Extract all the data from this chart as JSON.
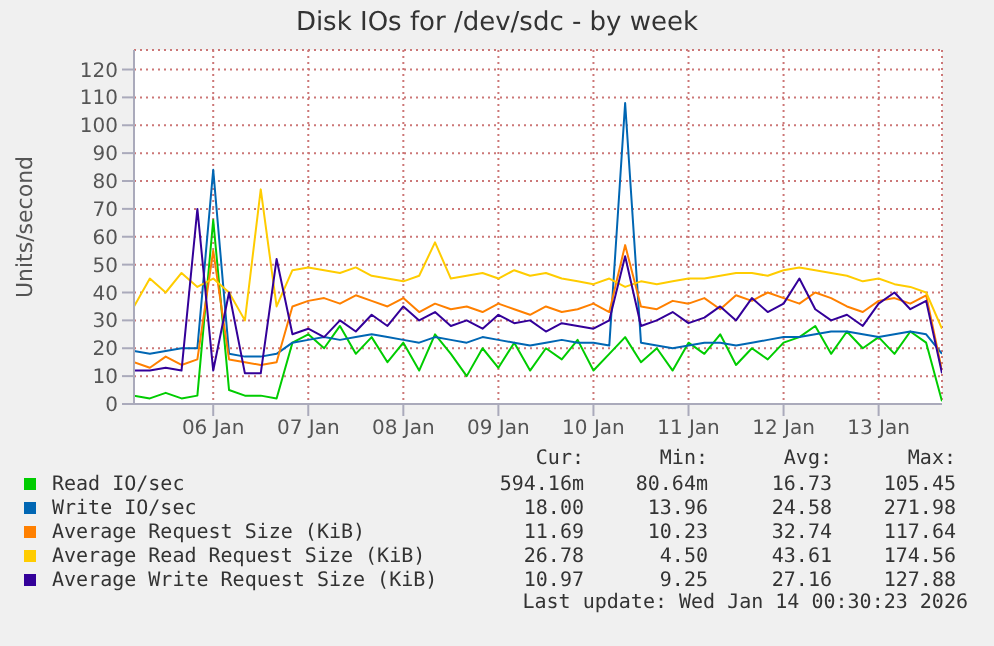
{
  "chart_data": {
    "type": "line",
    "title": "Disk IOs for /dev/sdc - by week",
    "ylabel": "Units/second",
    "x": [
      "2026-01-05T04:00",
      "2026-01-05T08:00",
      "2026-01-05T12:00",
      "2026-01-05T16:00",
      "2026-01-05T20:00",
      "2026-01-06T00:00",
      "2026-01-06T04:00",
      "2026-01-06T08:00",
      "2026-01-06T12:00",
      "2026-01-06T16:00",
      "2026-01-06T20:00",
      "2026-01-07T00:00",
      "2026-01-07T04:00",
      "2026-01-07T08:00",
      "2026-01-07T12:00",
      "2026-01-07T16:00",
      "2026-01-07T20:00",
      "2026-01-08T00:00",
      "2026-01-08T04:00",
      "2026-01-08T08:00",
      "2026-01-08T12:00",
      "2026-01-08T16:00",
      "2026-01-08T20:00",
      "2026-01-09T00:00",
      "2026-01-09T04:00",
      "2026-01-09T08:00",
      "2026-01-09T12:00",
      "2026-01-09T16:00",
      "2026-01-09T20:00",
      "2026-01-10T00:00",
      "2026-01-10T04:00",
      "2026-01-10T08:00",
      "2026-01-10T12:00",
      "2026-01-10T16:00",
      "2026-01-10T20:00",
      "2026-01-11T00:00",
      "2026-01-11T04:00",
      "2026-01-11T08:00",
      "2026-01-11T12:00",
      "2026-01-11T16:00",
      "2026-01-11T20:00",
      "2026-01-12T00:00",
      "2026-01-12T04:00",
      "2026-01-12T08:00",
      "2026-01-12T12:00",
      "2026-01-12T16:00",
      "2026-01-12T20:00",
      "2026-01-13T00:00",
      "2026-01-13T04:00",
      "2026-01-13T08:00",
      "2026-01-13T12:00",
      "2026-01-13T16:00"
    ],
    "series": [
      {
        "name": "Read IO/sec",
        "color": "#00cc00",
        "values": [
          3,
          2,
          4,
          2,
          3,
          66,
          5,
          3,
          3,
          2,
          22,
          25,
          20,
          28,
          18,
          24,
          15,
          22,
          12,
          25,
          18,
          10,
          20,
          13,
          22,
          12,
          20,
          16,
          23,
          12,
          18,
          24,
          15,
          20,
          12,
          22,
          18,
          25,
          14,
          20,
          16,
          22,
          24,
          28,
          18,
          26,
          20,
          24,
          18,
          26,
          22,
          1
        ]
      },
      {
        "name": "Write IO/sec",
        "color": "#0066b3",
        "values": [
          19,
          18,
          19,
          20,
          20,
          84,
          18,
          17,
          17,
          18,
          22,
          23,
          24,
          23,
          24,
          25,
          24,
          23,
          22,
          24,
          23,
          22,
          24,
          23,
          22,
          21,
          22,
          23,
          22,
          22,
          21,
          108,
          22,
          21,
          20,
          21,
          22,
          22,
          21,
          22,
          23,
          24,
          24,
          25,
          26,
          26,
          25,
          24,
          25,
          26,
          25,
          18
        ]
      },
      {
        "name": "Average Request Size (KiB)",
        "color": "#ff8000",
        "values": [
          15,
          13,
          17,
          14,
          16,
          55,
          16,
          15,
          14,
          15,
          35,
          37,
          38,
          36,
          39,
          37,
          35,
          38,
          33,
          36,
          34,
          35,
          33,
          36,
          34,
          32,
          35,
          33,
          34,
          36,
          33,
          57,
          35,
          34,
          37,
          36,
          38,
          34,
          39,
          37,
          40,
          38,
          36,
          40,
          38,
          35,
          33,
          37,
          38,
          36,
          39,
          12
        ]
      },
      {
        "name": "Average Read Request Size (KiB)",
        "color": "#ffcc00",
        "values": [
          35,
          45,
          40,
          47,
          42,
          45,
          40,
          30,
          77,
          35,
          48,
          49,
          48,
          47,
          49,
          46,
          45,
          44,
          46,
          58,
          45,
          46,
          47,
          45,
          48,
          46,
          47,
          45,
          44,
          43,
          45,
          42,
          44,
          43,
          44,
          45,
          45,
          46,
          47,
          47,
          46,
          48,
          49,
          48,
          47,
          46,
          44,
          45,
          43,
          42,
          40,
          27
        ]
      },
      {
        "name": "Average Write Request Size (KiB)",
        "color": "#330099",
        "values": [
          12,
          12,
          13,
          12,
          70,
          12,
          40,
          11,
          11,
          52,
          25,
          27,
          24,
          30,
          26,
          32,
          28,
          35,
          30,
          33,
          28,
          30,
          27,
          32,
          29,
          30,
          26,
          29,
          28,
          27,
          30,
          53,
          28,
          30,
          33,
          29,
          31,
          35,
          30,
          38,
          33,
          36,
          45,
          34,
          30,
          32,
          28,
          36,
          40,
          34,
          37,
          11
        ]
      }
    ],
    "xlim": [
      "2026-01-05T04:00",
      "2026-01-13T16:00"
    ],
    "xticks": [
      {
        "value": "2026-01-06",
        "label": "06 Jan"
      },
      {
        "value": "2026-01-07",
        "label": "07 Jan"
      },
      {
        "value": "2026-01-08",
        "label": "08 Jan"
      },
      {
        "value": "2026-01-09",
        "label": "09 Jan"
      },
      {
        "value": "2026-01-10",
        "label": "10 Jan"
      },
      {
        "value": "2026-01-11",
        "label": "11 Jan"
      },
      {
        "value": "2026-01-12",
        "label": "12 Jan"
      },
      {
        "value": "2026-01-13",
        "label": "13 Jan"
      }
    ],
    "ylim": [
      0,
      127
    ],
    "yticks": [
      0,
      10,
      20,
      30,
      40,
      50,
      60,
      70,
      80,
      90,
      100,
      110,
      120
    ],
    "grid": true,
    "legend": "bottom",
    "annotations": [
      "Cur:",
      "Min:",
      "Avg:",
      "Max:",
      "594.16m",
      "80.64m",
      "16.73",
      "105.45",
      "18.00",
      "13.96",
      "24.58",
      "271.98",
      "11.69",
      "10.23",
      "32.74",
      "117.64",
      "26.78",
      "4.50",
      "43.61",
      "174.56",
      "10.97",
      "9.25",
      "27.16",
      "127.88",
      "Last update: Wed Jan 14 00:30:23 2026"
    ]
  }
}
